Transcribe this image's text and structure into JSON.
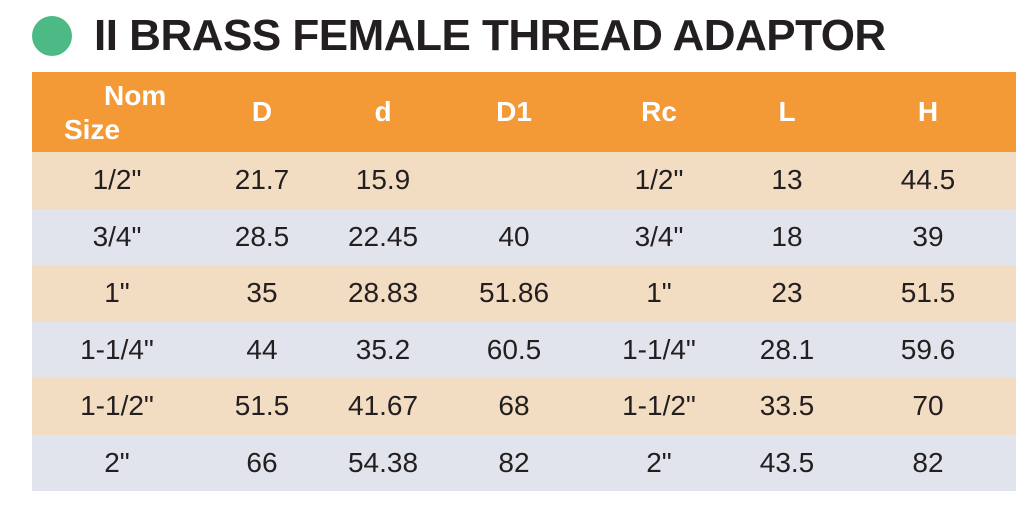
{
  "title": "II BRASS FEMALE THREAD ADAPTOR",
  "colors": {
    "bullet": "#4dba86",
    "header_bg": "#f39a37",
    "row_odd_bg": "#f2dcc2",
    "row_even_bg": "#e1e4ed"
  },
  "table": {
    "headers": {
      "nom_line1": "Nom",
      "nom_line2": "Size",
      "D": "D",
      "d": "d",
      "D1": "D1",
      "Rc": "Rc",
      "L": "L",
      "H": "H"
    },
    "rows": [
      [
        "1/2\"",
        "21.7",
        "15.9",
        "",
        "1/2\"",
        "13",
        "44.5"
      ],
      [
        "3/4\"",
        "28.5",
        "22.45",
        "40",
        "3/4\"",
        "18",
        "39"
      ],
      [
        "1\"",
        "35",
        "28.83",
        "51.86",
        "1\"",
        "23",
        "51.5"
      ],
      [
        "1-1/4\"",
        "44",
        "35.2",
        "60.5",
        "1-1/4\"",
        "28.1",
        "59.6"
      ],
      [
        "1-1/2\"",
        "51.5",
        "41.67",
        "68",
        "1-1/2\"",
        "33.5",
        "70"
      ],
      [
        "2\"",
        "66",
        "54.38",
        "82",
        "2\"",
        "43.5",
        "82"
      ]
    ]
  }
}
